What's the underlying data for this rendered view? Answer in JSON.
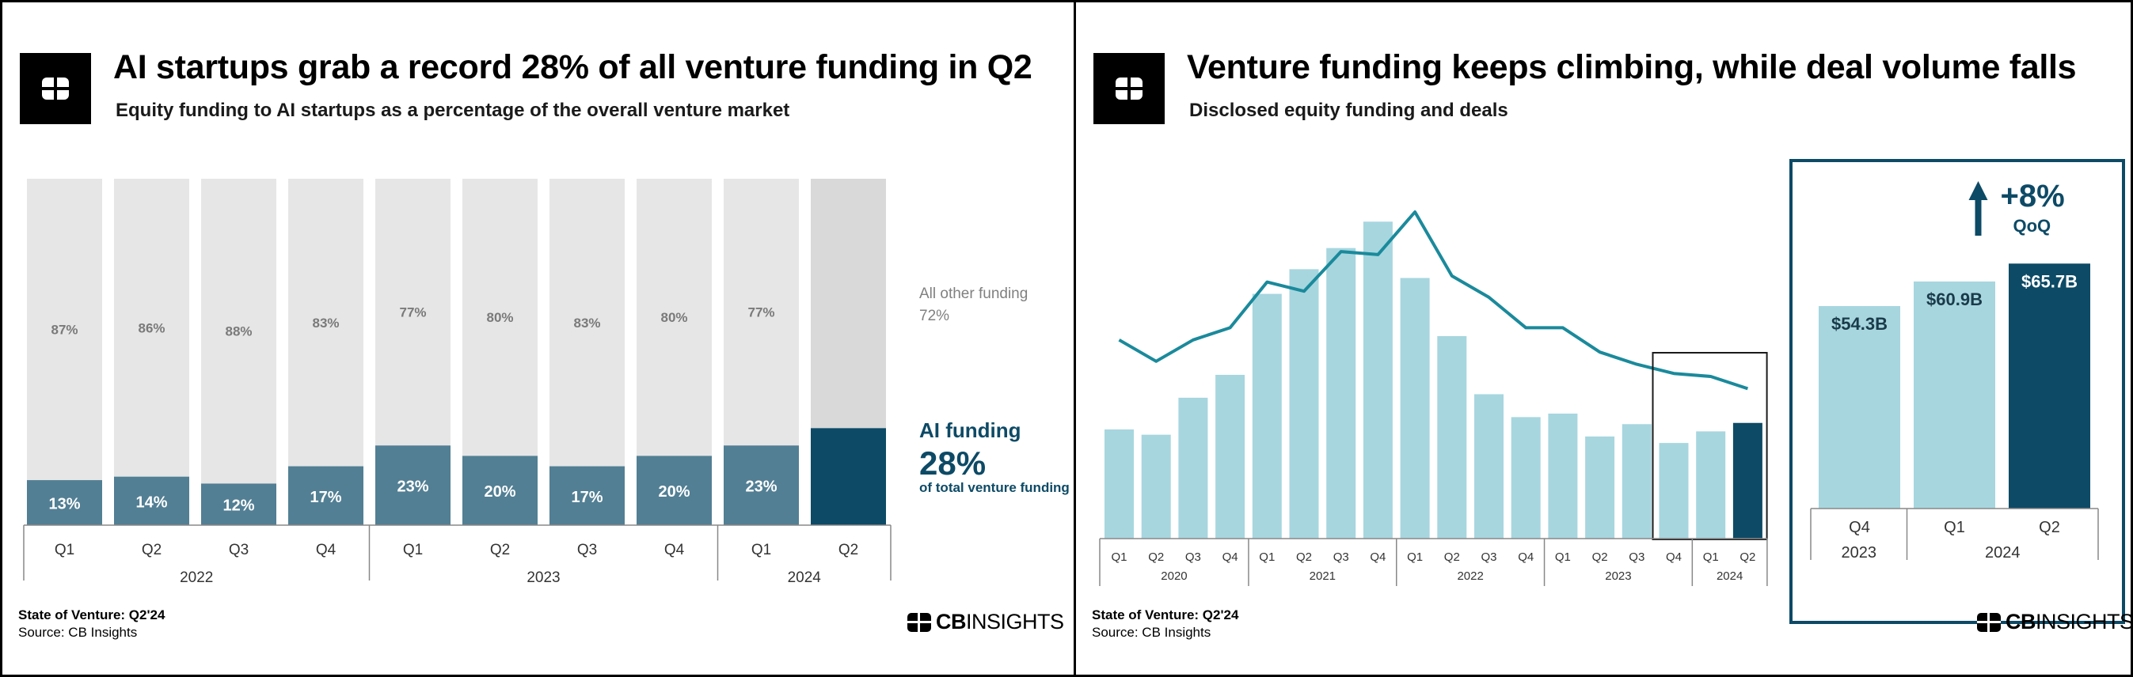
{
  "left": {
    "title": "AI startups grab a record 28% of all venture funding in Q2",
    "subtitle": "Equity funding to AI startups as a percentage of the overall venture market",
    "other_label": "All other funding",
    "other_value": "72%",
    "ai_label": "AI funding",
    "ai_value": "28%",
    "ai_sub": "of total venture funding",
    "footer_title": "State of Venture: Q2'24",
    "footer_source": "Source: CB Insights",
    "brand_bold": "CB",
    "brand_rest": "INSIGHTS",
    "colors": {
      "other": "#e6e6e6",
      "ai": "#527f94",
      "ai_latest": "#0d4a66"
    }
  },
  "right": {
    "title": "Venture funding keeps climbing, while deal volume falls",
    "subtitle": "Disclosed equity funding and deals",
    "inset_arrow_value": "+8%",
    "inset_arrow_label": "QoQ",
    "footer_title": "State of Venture: Q2'24",
    "footer_source": "Source: CB Insights",
    "brand_bold": "CB",
    "brand_rest": "INSIGHTS",
    "colors": {
      "bar": "#a7d6df",
      "bar_latest": "#0d4a66",
      "line": "#1a8a9b",
      "frame": "#0d4a66"
    }
  },
  "chart_data": [
    {
      "type": "bar",
      "stacked": true,
      "percent": true,
      "categories": [
        "Q1",
        "Q2",
        "Q3",
        "Q4",
        "Q1",
        "Q2",
        "Q3",
        "Q4",
        "Q1",
        "Q2"
      ],
      "groups": [
        {
          "label": "2022",
          "span": 4
        },
        {
          "label": "2023",
          "span": 4
        },
        {
          "label": "2024",
          "span": 2
        }
      ],
      "series": [
        {
          "name": "AI funding",
          "values": [
            13,
            14,
            12,
            17,
            23,
            20,
            17,
            20,
            23,
            28
          ],
          "labels": [
            "13%",
            "14%",
            "12%",
            "17%",
            "23%",
            "20%",
            "17%",
            "20%",
            "23%",
            ""
          ]
        },
        {
          "name": "All other funding",
          "values": [
            87,
            86,
            88,
            83,
            77,
            80,
            83,
            80,
            77,
            72
          ],
          "labels": [
            "87%",
            "86%",
            "88%",
            "83%",
            "77%",
            "80%",
            "83%",
            "80%",
            "77%",
            ""
          ]
        }
      ],
      "ylim": [
        0,
        100
      ]
    },
    {
      "type": "bar",
      "categories": [
        "Q1",
        "Q2",
        "Q3",
        "Q4",
        "Q1",
        "Q2",
        "Q3",
        "Q4",
        "Q1",
        "Q2",
        "Q3",
        "Q4",
        "Q1",
        "Q2",
        "Q3",
        "Q4",
        "Q1",
        "Q2"
      ],
      "groups": [
        {
          "label": "2020",
          "span": 4
        },
        {
          "label": "2021",
          "span": 4
        },
        {
          "label": "2022",
          "span": 4
        },
        {
          "label": "2023",
          "span": 4
        },
        {
          "label": "2024",
          "span": 2
        }
      ],
      "series": [
        {
          "name": "Funding",
          "values": [
            62,
            59,
            80,
            93,
            139,
            153,
            165,
            180,
            148,
            115,
            82,
            69,
            71,
            58,
            65,
            54.3,
            60.9,
            65.7
          ]
        },
        {
          "name": "Deals",
          "values": [
            7900,
            7200,
            7900,
            8300,
            9800,
            9500,
            10800,
            10700,
            12100,
            10000,
            9300,
            8300,
            8300,
            7500,
            7100,
            6800,
            6700,
            6300
          ]
        }
      ],
      "ylim": [
        0,
        190
      ],
      "highlight_last": 3
    },
    {
      "type": "bar",
      "categories": [
        "Q4",
        "Q1",
        "Q2"
      ],
      "groups": [
        {
          "label": "2023",
          "span": 1
        },
        {
          "label": "2024",
          "span": 2
        }
      ],
      "values": [
        54.3,
        60.9,
        65.7
      ],
      "labels": [
        "$54.3B",
        "$60.9B",
        "$65.7B"
      ],
      "ylim": [
        0,
        70
      ]
    }
  ]
}
